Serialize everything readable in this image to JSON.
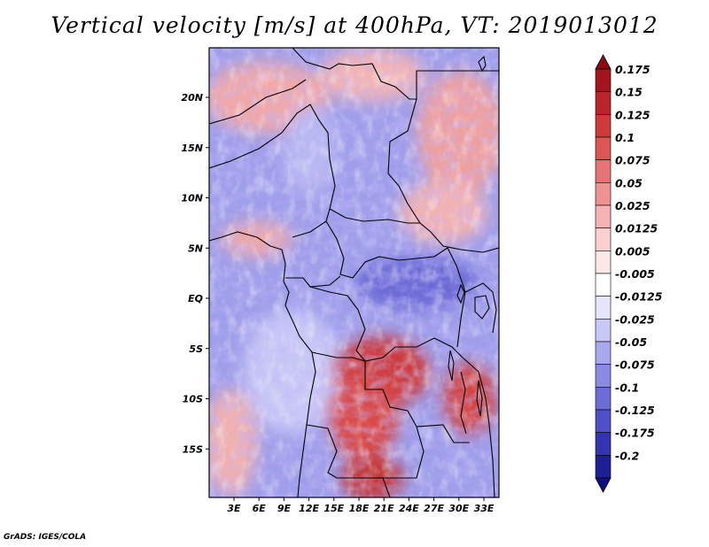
{
  "title": "Vertical velocity [m/s] at 400hPa, VT: 2019013012",
  "footer": "GrADS: IGES/COLA",
  "chart_data": {
    "type": "heatmap",
    "variable": "Vertical velocity",
    "units": "m/s",
    "level": "400hPa",
    "valid_time": "2019013012",
    "lat_ticks": [
      {
        "value": 20,
        "label": "20N"
      },
      {
        "value": 15,
        "label": "15N"
      },
      {
        "value": 10,
        "label": "10N"
      },
      {
        "value": 5,
        "label": "5N"
      },
      {
        "value": 0,
        "label": "EQ"
      },
      {
        "value": -5,
        "label": "5S"
      },
      {
        "value": -10,
        "label": "10S"
      },
      {
        "value": -15,
        "label": "15S"
      }
    ],
    "lon_ticks": [
      {
        "value": 3,
        "label": "3E"
      },
      {
        "value": 6,
        "label": "6E"
      },
      {
        "value": 9,
        "label": "9E"
      },
      {
        "value": 12,
        "label": "12E"
      },
      {
        "value": 15,
        "label": "15E"
      },
      {
        "value": 18,
        "label": "18E"
      },
      {
        "value": 21,
        "label": "21E"
      },
      {
        "value": 24,
        "label": "24E"
      },
      {
        "value": 27,
        "label": "27E"
      },
      {
        "value": 30,
        "label": "30E"
      },
      {
        "value": 33,
        "label": "33E"
      }
    ],
    "colorbar": {
      "levels": [
        {
          "label": "0.175",
          "color": "#a3141c"
        },
        {
          "label": "0.15",
          "color": "#b8242a"
        },
        {
          "label": "0.125",
          "color": "#cc3a3c"
        },
        {
          "label": "0.1",
          "color": "#dc5656"
        },
        {
          "label": "0.075",
          "color": "#e67474"
        },
        {
          "label": "0.05",
          "color": "#ef9292"
        },
        {
          "label": "0.025",
          "color": "#f6b2b2"
        },
        {
          "label": "0.0125",
          "color": "#fad0d0"
        },
        {
          "label": "0.005",
          "color": "#fde8e8"
        },
        {
          "label": "-0.005",
          "color": "#ffffff"
        },
        {
          "label": "-0.0125",
          "color": "#e4e4fc"
        },
        {
          "label": "-0.025",
          "color": "#c8c8f6"
        },
        {
          "label": "-0.05",
          "color": "#a8a8ee"
        },
        {
          "label": "-0.075",
          "color": "#8a8ae4"
        },
        {
          "label": "-0.1",
          "color": "#6c6cd8"
        },
        {
          "label": "-0.125",
          "color": "#4f4fc8"
        },
        {
          "label": "-0.175",
          "color": "#3434b0"
        },
        {
          "label": "-0.2",
          "color": "#1e1e96"
        }
      ],
      "over_color": "#8c0a12",
      "under_color": "#10107c"
    }
  }
}
